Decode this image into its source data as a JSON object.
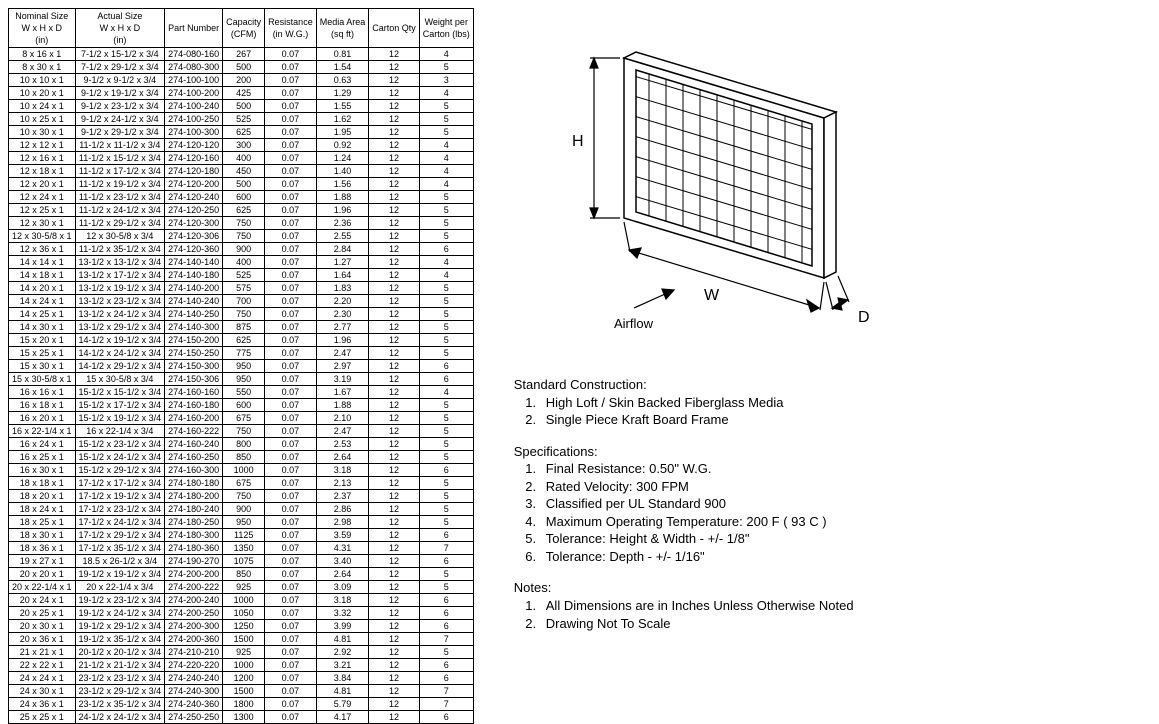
{
  "table": {
    "columns": [
      "Nominal Size\nW x H x D\n(in)",
      "Actual Size\nW x H x D\n(in)",
      "Part Number",
      "Capacity\n(CFM)",
      "Resistance\n(in W.G.)",
      "Media Area\n(sq ft)",
      "Carton Qty",
      "Weight per\nCarton (lbs)"
    ],
    "rows": [
      [
        "8 x 16 x 1",
        "7-1/2 x 15-1/2 x 3/4",
        "274-080-160",
        "267",
        "0.07",
        "0.81",
        "12",
        "4"
      ],
      [
        "8 x 30 x 1",
        "7-1/2 x 29-1/2 x 3/4",
        "274-080-300",
        "500",
        "0.07",
        "1.54",
        "12",
        "5"
      ],
      [
        "10 x 10 x 1",
        "9-1/2 x 9-1/2 x 3/4",
        "274-100-100",
        "200",
        "0.07",
        "0.63",
        "12",
        "3"
      ],
      [
        "10 x 20 x 1",
        "9-1/2 x 19-1/2 x 3/4",
        "274-100-200",
        "425",
        "0.07",
        "1.29",
        "12",
        "4"
      ],
      [
        "10 x 24 x 1",
        "9-1/2 x 23-1/2 x 3/4",
        "274-100-240",
        "500",
        "0.07",
        "1.55",
        "12",
        "5"
      ],
      [
        "10 x 25 x 1",
        "9-1/2 x 24-1/2 x 3/4",
        "274-100-250",
        "525",
        "0.07",
        "1.62",
        "12",
        "5"
      ],
      [
        "10 x 30 x 1",
        "9-1/2 x 29-1/2 x 3/4",
        "274-100-300",
        "625",
        "0.07",
        "1.95",
        "12",
        "5"
      ],
      [
        "12 x 12 x 1",
        "11-1/2 x 11-1/2 x 3/4",
        "274-120-120",
        "300",
        "0.07",
        "0.92",
        "12",
        "4"
      ],
      [
        "12 x 16 x 1",
        "11-1/2 x 15-1/2 x 3/4",
        "274-120-160",
        "400",
        "0.07",
        "1.24",
        "12",
        "4"
      ],
      [
        "12 x 18 x 1",
        "11-1/2 x 17-1/2 x 3/4",
        "274-120-180",
        "450",
        "0.07",
        "1.40",
        "12",
        "4"
      ],
      [
        "12 x 20 x 1",
        "11-1/2 x 19-1/2 x 3/4",
        "274-120-200",
        "500",
        "0.07",
        "1.56",
        "12",
        "4"
      ],
      [
        "12 x 24 x 1",
        "11-1/2 x 23-1/2 x 3/4",
        "274-120-240",
        "600",
        "0.07",
        "1.88",
        "12",
        "5"
      ],
      [
        "12 x 25 x 1",
        "11-1/2 x 24-1/2 x 3/4",
        "274-120-250",
        "625",
        "0.07",
        "1.96",
        "12",
        "5"
      ],
      [
        "12 x 30 x 1",
        "11-1/2 x 29-1/2 x 3/4",
        "274-120-300",
        "750",
        "0.07",
        "2.36",
        "12",
        "5"
      ],
      [
        "12 x 30-5/8 x 1",
        "12 x 30-5/8 x 3/4",
        "274-120-306",
        "750",
        "0.07",
        "2.55",
        "12",
        "5"
      ],
      [
        "12 x 36 x 1",
        "11-1/2 x 35-1/2 x 3/4",
        "274-120-360",
        "900",
        "0.07",
        "2.84",
        "12",
        "6"
      ],
      [
        "14 x 14 x 1",
        "13-1/2 x 13-1/2 x 3/4",
        "274-140-140",
        "400",
        "0.07",
        "1.27",
        "12",
        "4"
      ],
      [
        "14 x 18 x 1",
        "13-1/2 x 17-1/2 x 3/4",
        "274-140-180",
        "525",
        "0.07",
        "1.64",
        "12",
        "4"
      ],
      [
        "14 x 20 x 1",
        "13-1/2 x 19-1/2 x 3/4",
        "274-140-200",
        "575",
        "0.07",
        "1.83",
        "12",
        "5"
      ],
      [
        "14 x 24 x 1",
        "13-1/2 x 23-1/2 x 3/4",
        "274-140-240",
        "700",
        "0.07",
        "2.20",
        "12",
        "5"
      ],
      [
        "14 x 25 x 1",
        "13-1/2 x 24-1/2 x 3/4",
        "274-140-250",
        "750",
        "0.07",
        "2.30",
        "12",
        "5"
      ],
      [
        "14 x 30 x 1",
        "13-1/2 x 29-1/2 x 3/4",
        "274-140-300",
        "875",
        "0.07",
        "2.77",
        "12",
        "5"
      ],
      [
        "15 x 20 x 1",
        "14-1/2 x 19-1/2 x 3/4",
        "274-150-200",
        "625",
        "0.07",
        "1.96",
        "12",
        "5"
      ],
      [
        "15 x 25 x 1",
        "14-1/2 x 24-1/2 x 3/4",
        "274-150-250",
        "775",
        "0.07",
        "2.47",
        "12",
        "5"
      ],
      [
        "15 x 30 x 1",
        "14-1/2 x 29-1/2 x 3/4",
        "274-150-300",
        "950",
        "0.07",
        "2.97",
        "12",
        "6"
      ],
      [
        "15 x 30-5/8 x 1",
        "15 x 30-5/8 x 3/4",
        "274-150-306",
        "950",
        "0.07",
        "3.19",
        "12",
        "6"
      ],
      [
        "16 x 16 x 1",
        "15-1/2 x 15-1/2 x 3/4",
        "274-160-160",
        "550",
        "0.07",
        "1.67",
        "12",
        "4"
      ],
      [
        "16 x 18 x 1",
        "15-1/2 x 17-1/2 x 3/4",
        "274-160-180",
        "600",
        "0.07",
        "1.88",
        "12",
        "5"
      ],
      [
        "16 x 20 x 1",
        "15-1/2 x 19-1/2 x 3/4",
        "274-160-200",
        "675",
        "0.07",
        "2.10",
        "12",
        "5"
      ],
      [
        "16 x 22-1/4 x 1",
        "16 x 22-1/4 x 3/4",
        "274-160-222",
        "750",
        "0.07",
        "2.47",
        "12",
        "5"
      ],
      [
        "16 x 24 x 1",
        "15-1/2 x 23-1/2 x 3/4",
        "274-160-240",
        "800",
        "0.07",
        "2.53",
        "12",
        "5"
      ],
      [
        "16 x 25 x 1",
        "15-1/2 x 24-1/2 x 3/4",
        "274-160-250",
        "850",
        "0.07",
        "2.64",
        "12",
        "5"
      ],
      [
        "16 x 30 x 1",
        "15-1/2 x 29-1/2 x 3/4",
        "274-160-300",
        "1000",
        "0.07",
        "3.18",
        "12",
        "6"
      ],
      [
        "18 x 18 x 1",
        "17-1/2 x 17-1/2 x 3/4",
        "274-180-180",
        "675",
        "0.07",
        "2.13",
        "12",
        "5"
      ],
      [
        "18 x 20 x 1",
        "17-1/2 x 19-1/2 x 3/4",
        "274-180-200",
        "750",
        "0.07",
        "2.37",
        "12",
        "5"
      ],
      [
        "18 x 24 x 1",
        "17-1/2 x 23-1/2 x 3/4",
        "274-180-240",
        "900",
        "0.07",
        "2.86",
        "12",
        "5"
      ],
      [
        "18 x 25 x 1",
        "17-1/2 x 24-1/2 x 3/4",
        "274-180-250",
        "950",
        "0.07",
        "2.98",
        "12",
        "5"
      ],
      [
        "18 x 30 x 1",
        "17-1/2 x 29-1/2 x 3/4",
        "274-180-300",
        "1125",
        "0.07",
        "3.59",
        "12",
        "6"
      ],
      [
        "18 x 36 x 1",
        "17-1/2 x 35-1/2 x 3/4",
        "274-180-360",
        "1350",
        "0.07",
        "4.31",
        "12",
        "7"
      ],
      [
        "19 x 27 x 1",
        "18.5 x 26-1/2 x 3/4",
        "274-190-270",
        "1075",
        "0.07",
        "3.40",
        "12",
        "6"
      ],
      [
        "20 x 20 x 1",
        "19-1/2 x 19-1/2 x 3/4",
        "274-200-200",
        "850",
        "0.07",
        "2.64",
        "12",
        "5"
      ],
      [
        "20 x 22-1/4 x 1",
        "20 x 22-1/4 x 3/4",
        "274-200-222",
        "925",
        "0.07",
        "3.09",
        "12",
        "5"
      ],
      [
        "20 x 24 x 1",
        "19-1/2 x 23-1/2 x 3/4",
        "274-200-240",
        "1000",
        "0.07",
        "3.18",
        "12",
        "6"
      ],
      [
        "20 x 25 x 1",
        "19-1/2 x 24-1/2 x 3/4",
        "274-200-250",
        "1050",
        "0.07",
        "3.32",
        "12",
        "6"
      ],
      [
        "20 x 30 x 1",
        "19-1/2 x 29-1/2 x 3/4",
        "274-200-300",
        "1250",
        "0.07",
        "3.99",
        "12",
        "6"
      ],
      [
        "20 x 36 x 1",
        "19-1/2 x 35-1/2 x 3/4",
        "274-200-360",
        "1500",
        "0.07",
        "4.81",
        "12",
        "7"
      ],
      [
        "21 x 21 x 1",
        "20-1/2 x 20-1/2 x 3/4",
        "274-210-210",
        "925",
        "0.07",
        "2.92",
        "12",
        "5"
      ],
      [
        "22 x 22 x 1",
        "21-1/2 x 21-1/2 x 3/4",
        "274-220-220",
        "1000",
        "0.07",
        "3.21",
        "12",
        "6"
      ],
      [
        "24 x 24 x 1",
        "23-1/2 x 23-1/2 x 3/4",
        "274-240-240",
        "1200",
        "0.07",
        "3.84",
        "12",
        "6"
      ],
      [
        "24 x 30 x 1",
        "23-1/2 x 29-1/2 x 3/4",
        "274-240-300",
        "1500",
        "0.07",
        "4.81",
        "12",
        "7"
      ],
      [
        "24 x 36 x 1",
        "23-1/2 x 35-1/2 x 3/4",
        "274-240-360",
        "1800",
        "0.07",
        "5.79",
        "12",
        "7"
      ],
      [
        "25 x 25 x 1",
        "24-1/2 x 24-1/2 x 3/4",
        "274-250-250",
        "1300",
        "0.07",
        "4.17",
        "12",
        "6"
      ]
    ]
  },
  "diagram": {
    "labels": {
      "h": "H",
      "w": "W",
      "d": "D",
      "airflow": "Airflow"
    }
  },
  "construction": {
    "heading": "Standard Construction:",
    "items": [
      "High Loft / Skin Backed Fiberglass Media",
      "Single Piece Kraft Board Frame"
    ]
  },
  "specs": {
    "heading": "Specifications:",
    "items": [
      "Final Resistance: 0.50\" W.G.",
      "Rated Velocity: 300 FPM",
      "Classified per UL Standard 900",
      "Maximum Operating Temperature: 200 F ( 93 C )",
      "Tolerance:  Height & Width - +/- 1/8\"",
      "Tolerance:  Depth - +/- 1/16\""
    ]
  },
  "notes": {
    "heading": "Notes:",
    "items": [
      "All Dimensions are in Inches Unless Otherwise Noted",
      "Drawing Not To Scale"
    ]
  }
}
